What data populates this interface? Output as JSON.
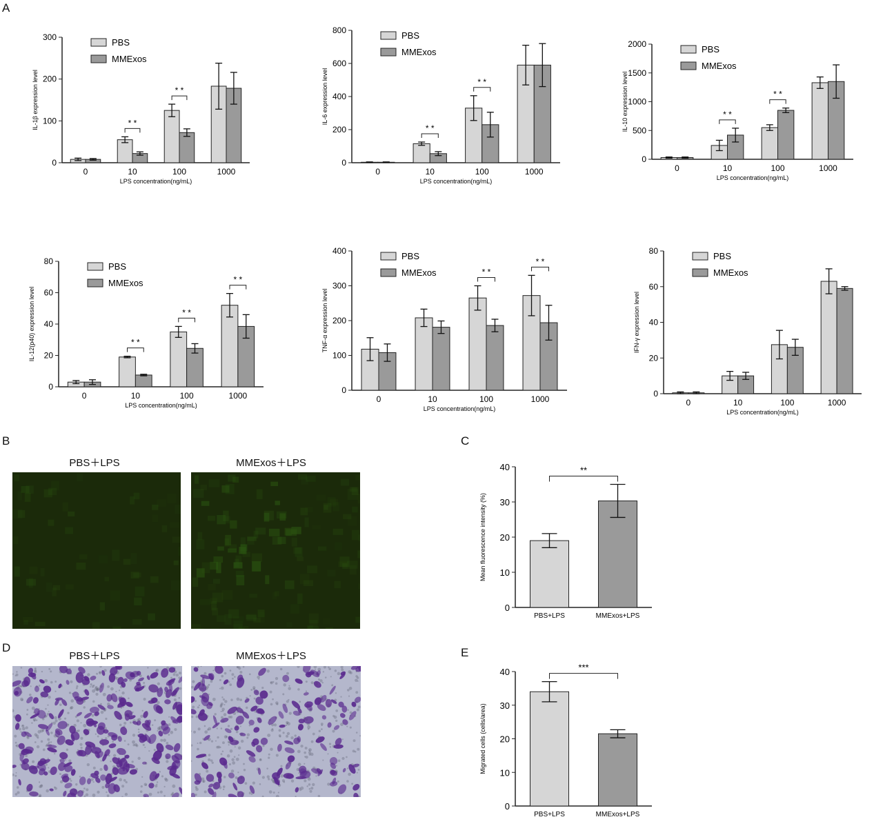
{
  "panel_labels": {
    "A": "A",
    "B": "B",
    "C": "C",
    "D": "D",
    "E": "E"
  },
  "legend": {
    "pbs": "PBS",
    "mmexos": "MMExos"
  },
  "colors": {
    "pbs": "#d6d6d6",
    "mmexos": "#9a9a9a",
    "fluor_bg": "#1b2a0a",
    "fluor_spot": "#2d5a12",
    "stain_bg": "#b4b7cc",
    "stain_cell": "#5a2a8e"
  },
  "micrographs": {
    "fluorescence": {
      "left_caption": "PBS＋LPS",
      "right_caption": "MMExos＋LPS"
    },
    "transwell": {
      "left_caption": "PBS＋LPS",
      "right_caption": "MMExos＋LPS"
    }
  },
  "chart_data": [
    {
      "id": "il1b",
      "type": "bar",
      "categories": [
        "0",
        "10",
        "100",
        "1000"
      ],
      "series": [
        {
          "name": "PBS",
          "values": [
            8,
            55,
            125,
            183
          ],
          "errors": [
            3,
            7,
            15,
            55
          ]
        },
        {
          "name": "MMExos",
          "values": [
            8,
            22,
            72,
            178
          ],
          "errors": [
            2,
            4,
            9,
            38
          ]
        }
      ],
      "ylabel": "IL-1β expression level",
      "xlabel": "LPS concentration(ng/mL)",
      "ylim": [
        0,
        300
      ],
      "yticks": [
        "0",
        "100",
        "200",
        "300"
      ],
      "significance": [
        {
          "category": "10",
          "label": "* *"
        },
        {
          "category": "100",
          "label": "* *"
        }
      ]
    },
    {
      "id": "il6",
      "type": "bar",
      "categories": [
        "0",
        "10",
        "100",
        "1000"
      ],
      "series": [
        {
          "name": "PBS",
          "values": [
            3,
            115,
            330,
            590
          ],
          "errors": [
            2,
            10,
            75,
            120
          ]
        },
        {
          "name": "MMExos",
          "values": [
            3,
            55,
            230,
            590
          ],
          "errors": [
            2,
            12,
            75,
            130
          ]
        }
      ],
      "ylabel": "IL-6 expression level",
      "xlabel": "LPS concentration(ng/mL)",
      "ylim": [
        0,
        800
      ],
      "yticks": [
        "0",
        "200",
        "400",
        "600",
        "800"
      ],
      "significance": [
        {
          "category": "10",
          "label": "* *"
        },
        {
          "category": "100",
          "label": "* *"
        }
      ]
    },
    {
      "id": "il10",
      "type": "bar",
      "categories": [
        "0",
        "10",
        "100",
        "1000"
      ],
      "series": [
        {
          "name": "PBS",
          "values": [
            30,
            240,
            550,
            1330
          ],
          "errors": [
            10,
            90,
            50,
            100
          ]
        },
        {
          "name": "MMExos",
          "values": [
            30,
            420,
            850,
            1350
          ],
          "errors": [
            10,
            120,
            40,
            290
          ]
        }
      ],
      "ylabel": "IL-10 expression level",
      "xlabel": "LPS concentration(ng/mL)",
      "ylim": [
        0,
        2000
      ],
      "yticks": [
        "0",
        "500",
        "1000",
        "1500",
        "2000"
      ],
      "significance": [
        {
          "category": "10",
          "label": "* *"
        },
        {
          "category": "100",
          "label": "* *"
        }
      ]
    },
    {
      "id": "il12",
      "type": "bar",
      "categories": [
        "0",
        "10",
        "100",
        "1000"
      ],
      "series": [
        {
          "name": "PBS",
          "values": [
            3,
            19,
            35,
            52
          ],
          "errors": [
            1,
            0.5,
            3.5,
            7.5
          ]
        },
        {
          "name": "MMExos",
          "values": [
            3,
            7.5,
            24.5,
            38.5
          ],
          "errors": [
            1.5,
            0.5,
            3,
            7.5
          ]
        }
      ],
      "ylabel": "IL-12(p40) expression level",
      "xlabel": "LPS concentration(ng/mL)",
      "ylim": [
        0,
        80
      ],
      "yticks": [
        "0",
        "20",
        "40",
        "60",
        "80"
      ],
      "significance": [
        {
          "category": "10",
          "label": "* *"
        },
        {
          "category": "100",
          "label": "* *"
        },
        {
          "category": "1000",
          "label": "* *"
        }
      ]
    },
    {
      "id": "tnfa",
      "type": "bar",
      "categories": [
        "0",
        "10",
        "100",
        "1000"
      ],
      "series": [
        {
          "name": "PBS",
          "values": [
            118,
            208,
            265,
            272
          ],
          "errors": [
            33,
            25,
            35,
            58
          ]
        },
        {
          "name": "MMExos",
          "values": [
            108,
            181,
            186,
            194
          ],
          "errors": [
            25,
            18,
            18,
            50
          ]
        }
      ],
      "ylabel": "TNF-α expression level",
      "xlabel": "LPS concentration(ng/mL)",
      "ylim": [
        0,
        400
      ],
      "yticks": [
        "0",
        "100",
        "200",
        "300",
        "400"
      ],
      "significance": [
        {
          "category": "100",
          "label": "* *"
        },
        {
          "category": "1000",
          "label": "* *"
        }
      ]
    },
    {
      "id": "ifng",
      "type": "bar",
      "categories": [
        "0",
        "10",
        "100",
        "1000"
      ],
      "series": [
        {
          "name": "PBS",
          "values": [
            0.5,
            10,
            27.5,
            63
          ],
          "errors": [
            0.5,
            2.5,
            8,
            7
          ]
        },
        {
          "name": "MMExos",
          "values": [
            0.5,
            10,
            26,
            59
          ],
          "errors": [
            0.5,
            2,
            4.5,
            1
          ]
        }
      ],
      "ylabel": "IFN-γ expression level",
      "xlabel": "LPS concentration(ng/mL)",
      "ylim": [
        0,
        80
      ],
      "yticks": [
        "0",
        "20",
        "40",
        "60",
        "80"
      ],
      "significance": []
    },
    {
      "id": "fluor",
      "type": "bar",
      "categories": [
        "PBS+LPS",
        "MMExos+LPS"
      ],
      "values": [
        19,
        30.3
      ],
      "errors": [
        2,
        4.7
      ],
      "ylabel": "Mean fluorescence intensity (%)",
      "xlabel": "",
      "ylim": [
        0,
        40
      ],
      "yticks": [
        "0",
        "10",
        "20",
        "30",
        "40"
      ],
      "significance": [
        {
          "label": "**"
        }
      ]
    },
    {
      "id": "migration",
      "type": "bar",
      "categories": [
        "PBS+LPS",
        "MMExos+LPS"
      ],
      "values": [
        34,
        21.5
      ],
      "errors": [
        3,
        1.2
      ],
      "ylabel": "Migrated cells (cells/area)",
      "xlabel": "",
      "ylim": [
        0,
        40
      ],
      "yticks": [
        "0",
        "10",
        "20",
        "30",
        "40"
      ],
      "significance": [
        {
          "label": "***"
        }
      ]
    }
  ]
}
